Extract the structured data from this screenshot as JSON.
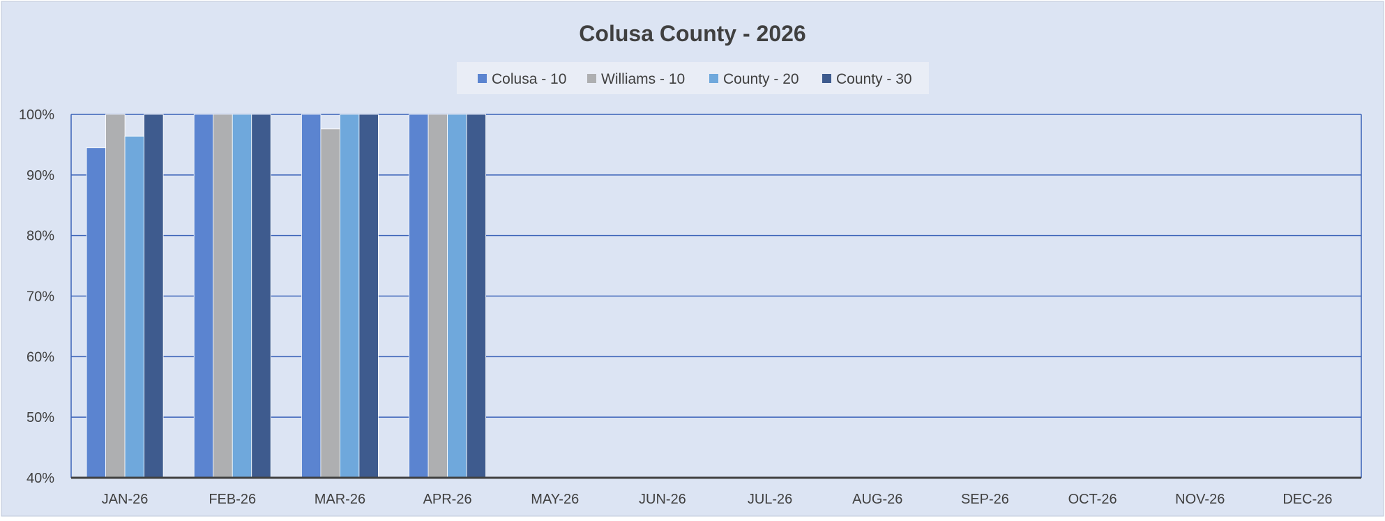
{
  "chart_data": {
    "type": "bar",
    "title": "Colusa County - 2026",
    "xlabel": "",
    "ylabel": "",
    "ylim": [
      40,
      100
    ],
    "y_ticks": [
      40,
      50,
      60,
      70,
      80,
      90,
      100
    ],
    "y_tick_labels": [
      "40%",
      "50%",
      "60%",
      "70%",
      "80%",
      "90%",
      "100%"
    ],
    "grid": true,
    "legend_position": "top-center",
    "categories": [
      "JAN-26",
      "FEB-26",
      "MAR-26",
      "APR-26",
      "MAY-26",
      "JUN-26",
      "JUL-26",
      "AUG-26",
      "SEP-26",
      "OCT-26",
      "NOV-26",
      "DEC-26"
    ],
    "series": [
      {
        "name": "Colusa - 10",
        "color": "#5B84D0",
        "values": [
          94.5,
          100,
          100,
          100,
          null,
          null,
          null,
          null,
          null,
          null,
          null,
          null
        ]
      },
      {
        "name": "Williams - 10",
        "color": "#AEAFB1",
        "values": [
          100,
          100,
          97.6,
          100,
          null,
          null,
          null,
          null,
          null,
          null,
          null,
          null
        ]
      },
      {
        "name": "County - 20",
        "color": "#6FA8DC",
        "values": [
          96.4,
          100,
          100,
          100,
          null,
          null,
          null,
          null,
          null,
          null,
          null,
          null
        ]
      },
      {
        "name": "County - 30",
        "color": "#3E5B8E",
        "values": [
          100,
          100,
          100,
          100,
          null,
          null,
          null,
          null,
          null,
          null,
          null,
          null
        ]
      }
    ]
  },
  "colors": {
    "background": "#DCE4F3",
    "grid": "#3A62B8",
    "axis": "#404040",
    "text": "#404040",
    "legend_bg": "#E9EDF6"
  }
}
